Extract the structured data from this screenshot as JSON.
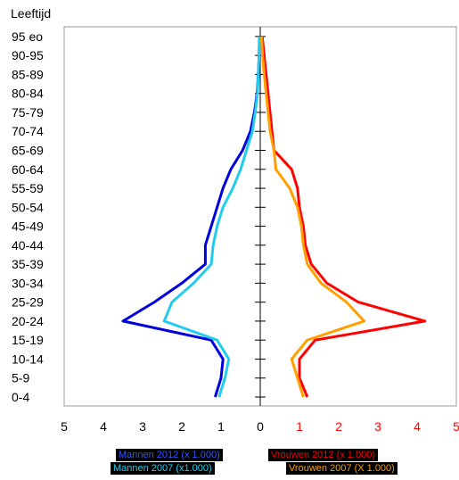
{
  "chart_data": {
    "type": "line",
    "title": "Leeftijd",
    "age_groups": [
      "0-4",
      "5-9",
      "10-14",
      "15-19",
      "20-24",
      "25-29",
      "30-34",
      "35-39",
      "40-44",
      "45-49",
      "50-54",
      "55-59",
      "60-64",
      "65-69",
      "70-74",
      "75-79",
      "80-84",
      "85-89",
      "90-95",
      "95 eo"
    ],
    "x_ticks": [
      5,
      4,
      3,
      2,
      1,
      0,
      1,
      2,
      3,
      4,
      5
    ],
    "x_tick_colors": [
      "#000000",
      "#000000",
      "#000000",
      "#000000",
      "#000000",
      "#000000",
      "#ff0000",
      "#ff0000",
      "#ff0000",
      "#ff0000",
      "#ff0000"
    ],
    "xlim": [
      -5,
      5
    ],
    "series": [
      {
        "name": "Mannen 2012 (x 1.000)",
        "color": "#0000dd",
        "side": "left",
        "values": [
          1.15,
          1.0,
          0.95,
          1.25,
          3.5,
          2.7,
          2.0,
          1.4,
          1.4,
          1.25,
          1.1,
          0.95,
          0.75,
          0.45,
          0.25,
          0.15,
          0.08,
          0.05,
          0.03,
          0.02
        ]
      },
      {
        "name": "Mannen 2007 (x1.000)",
        "color": "#22ccee",
        "side": "left",
        "values": [
          1.05,
          0.9,
          0.8,
          1.1,
          2.45,
          2.25,
          1.7,
          1.25,
          1.2,
          1.1,
          0.95,
          0.7,
          0.5,
          0.35,
          0.2,
          0.13,
          0.07,
          0.05,
          0.03,
          0.02
        ]
      },
      {
        "name": "Vrouwen 2012 (x 1.000)",
        "color": "#ff0000",
        "side": "right",
        "values": [
          1.2,
          1.0,
          1.0,
          1.4,
          4.2,
          2.5,
          1.7,
          1.3,
          1.15,
          1.1,
          1.0,
          0.95,
          0.8,
          0.35,
          0.3,
          0.25,
          0.2,
          0.15,
          0.1,
          0.05
        ]
      },
      {
        "name": "Vrouwen 2007 (X 1.000)",
        "color": "#ffa000",
        "side": "right",
        "values": [
          1.1,
          0.95,
          0.8,
          1.2,
          2.65,
          2.2,
          1.55,
          1.2,
          1.1,
          1.05,
          0.95,
          0.75,
          0.4,
          0.35,
          0.25,
          0.2,
          0.15,
          0.1,
          0.06,
          0.03
        ]
      }
    ],
    "legend": [
      "Mannen 2012 (x 1.000)",
      "Vrouwen 2012 (x 1.000)",
      "Mannen 2007 (x1.000)",
      "Vrouwen 2007 (X 1.000)"
    ],
    "grid": false,
    "legend_placement": "bottom"
  }
}
